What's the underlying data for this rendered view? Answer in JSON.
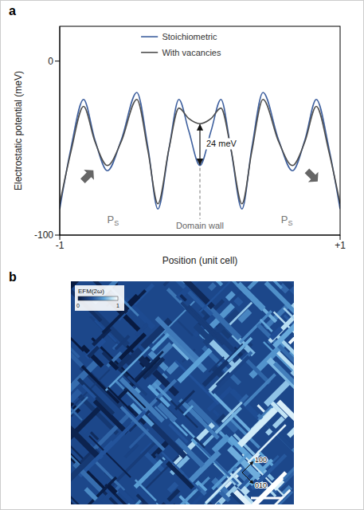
{
  "chart_data": {
    "type": "line",
    "panel_label": "a",
    "x_label": "Position (unit cell)",
    "y_label": "Electrostatic potential (meV)",
    "x": [
      -1,
      -0.92,
      -0.83,
      -0.75,
      -0.66,
      -0.56,
      -0.45,
      -0.37,
      -0.3,
      -0.22,
      -0.15,
      -0.08,
      0,
      0.08,
      0.15,
      0.22,
      0.3,
      0.37,
      0.45,
      0.56,
      0.66,
      0.75,
      0.83,
      0.92,
      1
    ],
    "series": [
      {
        "name": "Stoichiometric",
        "color": "#3d5f9e",
        "values": [
          -85,
          -50,
          -22,
          -45,
          -63,
          -45,
          -18,
          -50,
          -85,
          -50,
          -22,
          -40,
          -60,
          -40,
          -22,
          -50,
          -85,
          -50,
          -18,
          -45,
          -63,
          -45,
          -22,
          -50,
          -85
        ]
      },
      {
        "name": "With vacancies",
        "color": "#4d4d4d",
        "values": [
          -82,
          -52,
          -26,
          -46,
          -60,
          -46,
          -22,
          -52,
          -82,
          -50,
          -27,
          -33,
          -36,
          -33,
          -27,
          -50,
          -82,
          -52,
          -22,
          -46,
          -60,
          -46,
          -26,
          -52,
          -82
        ]
      }
    ],
    "xlim": [
      -1,
      1
    ],
    "xticks": [
      -1,
      {
        "value": 1,
        "label": "+1"
      }
    ],
    "ylim": [
      -100,
      20
    ],
    "yticks": [
      -100,
      0
    ],
    "grid": false,
    "legend": "top",
    "annotations": [
      {
        "text": "Domain wall",
        "x": 0
      },
      {
        "text": "24 meV",
        "x": 0
      },
      {
        "text": "P",
        "sub": "S"
      },
      {
        "text": "P",
        "sub": "S"
      }
    ]
  },
  "image": {
    "panel_label": "b",
    "colorbar": {
      "label": "EFM(2ω)",
      "range": [
        0,
        1
      ],
      "ticks": [
        0,
        1
      ]
    },
    "axes": [
      "100",
      "010"
    ]
  }
}
